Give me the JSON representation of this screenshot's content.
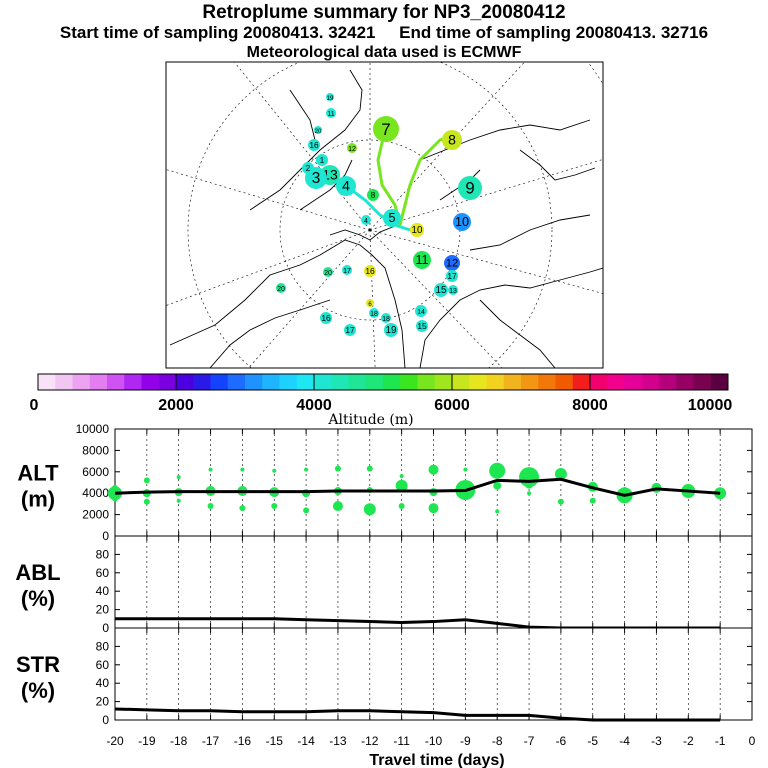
{
  "title": {
    "line1": "Retroplume summary for NP3_20080412",
    "line2": "Start time of sampling 20080413. 32421     End time of sampling 20080413. 32716",
    "line3": "Meteorological data used is ECMWF"
  },
  "colorbar": {
    "label": "Altitude (m)",
    "ticks": [
      "0",
      "2000",
      "4000",
      "6000",
      "8000",
      "10000"
    ],
    "colors": [
      "#f7e2f7",
      "#f2c6f2",
      "#eea3f2",
      "#e27ef2",
      "#cf52f2",
      "#b026f2",
      "#9400e8",
      "#7a00e0",
      "#4a00e0",
      "#2a1ae8",
      "#1443ff",
      "#1e6cff",
      "#1e93ff",
      "#1eb4ff",
      "#1ed2ff",
      "#1ee6f2",
      "#1ee6d2",
      "#1ee6b4",
      "#1ee696",
      "#1ee678",
      "#1ee650",
      "#3ce61e",
      "#78e61e",
      "#a0e61e",
      "#c8e61e",
      "#e6e61e",
      "#f2d21e",
      "#f2b41e",
      "#f29614",
      "#f2780a",
      "#f25a00",
      "#f21e1e",
      "#f2006e",
      "#f2008c",
      "#e6009b",
      "#d2008c",
      "#b4007a",
      "#960064",
      "#7a0050",
      "#5a0040"
    ]
  },
  "map": {
    "labels": [
      {
        "t": "7",
        "c": "#78e61e"
      },
      {
        "t": "8",
        "c": "#c8e61e"
      },
      {
        "t": "9",
        "c": "#1ee6b4"
      },
      {
        "t": "10",
        "c": "#1e93ff"
      },
      {
        "t": "11",
        "c": "#1ee650"
      },
      {
        "t": "12",
        "c": "#1e6cff"
      },
      {
        "t": "13",
        "c": "#1ee6b4"
      },
      {
        "t": "14",
        "c": "#1ee6d2"
      },
      {
        "t": "15",
        "c": "#1ee6d2"
      },
      {
        "t": "16",
        "c": "#1ee6d2"
      },
      {
        "t": "17",
        "c": "#1ee6d2"
      },
      {
        "t": "18",
        "c": "#1ee6d2"
      },
      {
        "t": "19",
        "c": "#1ee6d2"
      },
      {
        "t": "20",
        "c": "#1ee696"
      },
      {
        "t": "6",
        "c": "#e6e61e"
      },
      {
        "t": "5",
        "c": "#1ee6d2"
      },
      {
        "t": "4",
        "c": "#1ee6d2"
      },
      {
        "t": "3",
        "c": "#1ee6d2"
      },
      {
        "t": "2",
        "c": "#1ee6d2"
      },
      {
        "t": "1",
        "c": "#1ee6d2"
      },
      {
        "t": "10",
        "c": "#e6e61e"
      },
      {
        "t": "12",
        "c": "#78e61e"
      },
      {
        "t": "11",
        "c": "#1ee6d2"
      },
      {
        "t": "20",
        "c": "#1ee696"
      },
      {
        "t": "16",
        "c": "#1ee6d2"
      },
      {
        "t": "17",
        "c": "#1ee6d2"
      },
      {
        "t": "18",
        "c": "#1ee6d2"
      },
      {
        "t": "15",
        "c": "#1ee6d2"
      },
      {
        "t": "14",
        "c": "#1ee6d2"
      },
      {
        "t": "13",
        "c": "#1ee6d2"
      },
      {
        "t": "20",
        "c": "#1ee6d2"
      },
      {
        "t": "19",
        "c": "#1ee6d2"
      },
      {
        "t": "16",
        "c": "#e6e61e"
      },
      {
        "t": "17",
        "c": "#1ee6d2"
      },
      {
        "t": "8",
        "c": "#1ee650"
      },
      {
        "t": "4",
        "c": "#1ee6d2"
      }
    ]
  },
  "chart_data": [
    {
      "type": "scatter",
      "panel": "ALT",
      "ylabel": "ALT\n(m)",
      "ylabel_top": "ALT",
      "ylabel_bottom": "(m)",
      "ylim": [
        0,
        10000
      ],
      "yticks": [
        "0",
        "2000",
        "4000",
        "6000",
        "8000",
        "10000"
      ],
      "xlim": [
        -20,
        0
      ],
      "median_line": {
        "x": [
          -20,
          -19,
          -18,
          -17,
          -16,
          -15,
          -14,
          -13,
          -12,
          -11,
          -10,
          -9,
          -8,
          -7,
          -6,
          -5,
          -4,
          -3,
          -2,
          -1
        ],
        "y": [
          4000,
          4100,
          4150,
          4150,
          4150,
          4150,
          4150,
          4200,
          4200,
          4200,
          4200,
          4250,
          5200,
          5100,
          5300,
          4500,
          3800,
          4400,
          4200,
          4000
        ]
      },
      "points": [
        {
          "x": -20,
          "y": 4000,
          "s": 7
        },
        {
          "x": -20,
          "y": 4500,
          "s": 3
        },
        {
          "x": -20,
          "y": 3500,
          "s": 3
        },
        {
          "x": -19,
          "y": 5200,
          "s": 3
        },
        {
          "x": -19,
          "y": 4000,
          "s": 4
        },
        {
          "x": -19,
          "y": 3200,
          "s": 3
        },
        {
          "x": -18,
          "y": 5500,
          "s": 2
        },
        {
          "x": -18,
          "y": 4100,
          "s": 4
        },
        {
          "x": -18,
          "y": 3300,
          "s": 2
        },
        {
          "x": -17,
          "y": 6200,
          "s": 2
        },
        {
          "x": -17,
          "y": 4200,
          "s": 5
        },
        {
          "x": -17,
          "y": 2800,
          "s": 3
        },
        {
          "x": -16,
          "y": 6200,
          "s": 2
        },
        {
          "x": -16,
          "y": 4200,
          "s": 5
        },
        {
          "x": -16,
          "y": 2600,
          "s": 3
        },
        {
          "x": -15,
          "y": 6100,
          "s": 2
        },
        {
          "x": -15,
          "y": 4100,
          "s": 5
        },
        {
          "x": -15,
          "y": 2800,
          "s": 3
        },
        {
          "x": -14,
          "y": 6200,
          "s": 2
        },
        {
          "x": -14,
          "y": 4000,
          "s": 4
        },
        {
          "x": -14,
          "y": 2400,
          "s": 3
        },
        {
          "x": -13,
          "y": 6300,
          "s": 3
        },
        {
          "x": -13,
          "y": 4200,
          "s": 4
        },
        {
          "x": -13,
          "y": 2800,
          "s": 5
        },
        {
          "x": -12,
          "y": 6300,
          "s": 3
        },
        {
          "x": -12,
          "y": 4300,
          "s": 3
        },
        {
          "x": -12,
          "y": 2500,
          "s": 6
        },
        {
          "x": -11,
          "y": 5600,
          "s": 2
        },
        {
          "x": -11,
          "y": 4700,
          "s": 6
        },
        {
          "x": -11,
          "y": 2800,
          "s": 3
        },
        {
          "x": -10,
          "y": 6200,
          "s": 5
        },
        {
          "x": -10,
          "y": 4100,
          "s": 4
        },
        {
          "x": -10,
          "y": 2600,
          "s": 5
        },
        {
          "x": -9,
          "y": 4300,
          "s": 10
        },
        {
          "x": -9,
          "y": 6200,
          "s": 2
        },
        {
          "x": -8,
          "y": 6100,
          "s": 8
        },
        {
          "x": -8,
          "y": 4700,
          "s": 4
        },
        {
          "x": -8,
          "y": 2300,
          "s": 2
        },
        {
          "x": -7,
          "y": 5500,
          "s": 10
        },
        {
          "x": -7,
          "y": 4800,
          "s": 4
        },
        {
          "x": -7,
          "y": 4000,
          "s": 2
        },
        {
          "x": -6,
          "y": 5800,
          "s": 6
        },
        {
          "x": -6,
          "y": 3200,
          "s": 3
        },
        {
          "x": -5,
          "y": 4600,
          "s": 5
        },
        {
          "x": -5,
          "y": 3300,
          "s": 3
        },
        {
          "x": -4,
          "y": 3800,
          "s": 8
        },
        {
          "x": -4,
          "y": 4300,
          "s": 3
        },
        {
          "x": -3,
          "y": 4500,
          "s": 5
        },
        {
          "x": -2,
          "y": 4200,
          "s": 7
        },
        {
          "x": -1,
          "y": 4000,
          "s": 6
        }
      ]
    },
    {
      "type": "line",
      "panel": "ABL",
      "ylabel_top": "ABL",
      "ylabel_bottom": "(%)",
      "ylim": [
        0,
        100
      ],
      "yticks": [
        "0",
        "20",
        "40",
        "60",
        "80"
      ],
      "x": [
        -20,
        -19,
        -18,
        -17,
        -16,
        -15,
        -14,
        -13,
        -12,
        -11,
        -10,
        -9,
        -8,
        -7,
        -6,
        -5,
        -4,
        -3,
        -2,
        -1
      ],
      "y": [
        10,
        10,
        10,
        10,
        10,
        10,
        9,
        8,
        7,
        6,
        7,
        9,
        5,
        1,
        0,
        0,
        0,
        0,
        0,
        0
      ]
    },
    {
      "type": "line",
      "panel": "STR",
      "ylabel_top": "STR",
      "ylabel_bottom": "(%)",
      "ylim": [
        0,
        100
      ],
      "yticks": [
        "0",
        "20",
        "40",
        "60",
        "80"
      ],
      "x": [
        -20,
        -19,
        -18,
        -17,
        -16,
        -15,
        -14,
        -13,
        -12,
        -11,
        -10,
        -9,
        -8,
        -7,
        -6,
        -5,
        -4,
        -3,
        -2,
        -1
      ],
      "y": [
        12,
        11,
        10,
        10,
        9,
        9,
        9,
        10,
        10,
        9,
        8,
        5,
        5,
        5,
        2,
        0,
        0,
        0,
        0,
        0
      ],
      "xlabel": "Travel time (days)",
      "xticks": [
        "-20",
        "-19",
        "-18",
        "-17",
        "-16",
        "-15",
        "-14",
        "-13",
        "-12",
        "-11",
        "-10",
        "-9",
        "-8",
        "-7",
        "-6",
        "-5",
        "-4",
        "-3",
        "-2",
        "-1",
        "0"
      ]
    }
  ]
}
